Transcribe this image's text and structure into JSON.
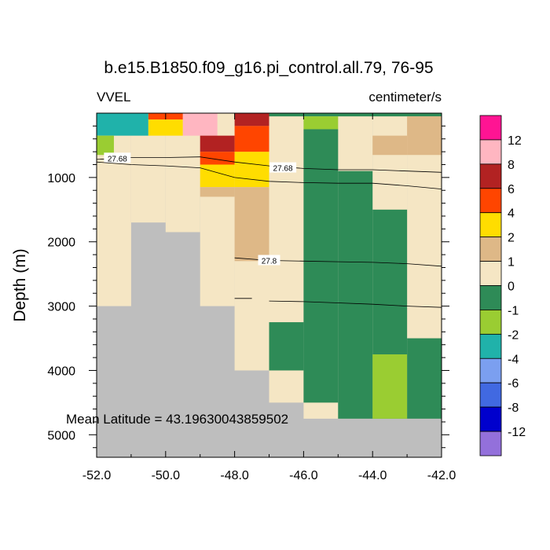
{
  "chart_data": {
    "type": "heatmap",
    "title": "b.e15.B1850.f09_g16.pi_control.all.79, 76-95",
    "left_label": "VVEL",
    "right_label": "centimeter/s",
    "ylabel": "Depth (m)",
    "xlabel": "",
    "xlim": [
      -52.0,
      -42.0
    ],
    "ylim": [
      5350,
      0
    ],
    "x_ticks": [
      -52.0,
      -50.0,
      -48.0,
      -46.0,
      -44.0,
      -42.0
    ],
    "x_tick_labels": [
      "-52.0",
      "-50.0",
      "-48.0",
      "-46.0",
      "-44.0",
      "-42.0"
    ],
    "y_ticks": [
      1000,
      2000,
      3000,
      4000,
      5000
    ],
    "y_tick_labels": [
      "1000",
      "2000",
      "3000",
      "4000",
      "5000"
    ],
    "annotation": "Mean Latitude = 43.19630043859502",
    "colorbar": {
      "labels": [
        "12",
        "8",
        "6",
        "4",
        "2",
        "1",
        "0",
        "-1",
        "-2",
        "-4",
        "-6",
        "-8",
        "-12"
      ],
      "colors": [
        "#ff1493",
        "#ffb6c1",
        "#b22222",
        "#ff4500",
        "#ffdd00",
        "#deb887",
        "#f5e6c4",
        "#2e8b57",
        "#9acd32",
        "#20b2aa",
        "#7b9ff0",
        "#4169e1",
        "#0000cd",
        "#9370db"
      ]
    },
    "colors": {
      "land": "#bebebe",
      "c0": "#f5e6c4",
      "c1": "#deb887",
      "c2": "#ffdd00",
      "c4": "#ff4500",
      "c6": "#b22222",
      "c8": "#ffb6c1",
      "cm1": "#2e8b57",
      "cm2": "#9acd32",
      "cm4": "#20b2aa"
    },
    "background_cells": [
      {
        "x": [
          -52.0,
          -42.0
        ],
        "y": [
          0,
          5350
        ],
        "c": "land"
      }
    ],
    "cells": [
      {
        "x": [
          -52.0,
          -51.0
        ],
        "y": [
          0,
          3000
        ],
        "c": "c0"
      },
      {
        "x": [
          -51.0,
          -50.0
        ],
        "y": [
          0,
          1700
        ],
        "c": "c0"
      },
      {
        "x": [
          -50.0,
          -49.0
        ],
        "y": [
          0,
          1850
        ],
        "c": "c0"
      },
      {
        "x": [
          -49.0,
          -48.0
        ],
        "y": [
          0,
          3000
        ],
        "c": "c0"
      },
      {
        "x": [
          -48.0,
          -47.0
        ],
        "y": [
          0,
          4000
        ],
        "c": "c0"
      },
      {
        "x": [
          -47.0,
          -46.0
        ],
        "y": [
          0,
          4500
        ],
        "c": "c0"
      },
      {
        "x": [
          -46.0,
          -45.0
        ],
        "y": [
          0,
          4750
        ],
        "c": "c0"
      },
      {
        "x": [
          -45.0,
          -44.0
        ],
        "y": [
          0,
          4750
        ],
        "c": "c0"
      },
      {
        "x": [
          -44.0,
          -43.0
        ],
        "y": [
          0,
          4750
        ],
        "c": "c0"
      },
      {
        "x": [
          -43.0,
          -42.0
        ],
        "y": [
          0,
          4750
        ],
        "c": "c0"
      },
      {
        "x": [
          -52.0,
          -50.5
        ],
        "y": [
          0,
          350
        ],
        "c": "cm4"
      },
      {
        "x": [
          -52.0,
          -51.5
        ],
        "y": [
          350,
          650
        ],
        "c": "cm2"
      },
      {
        "x": [
          -50.5,
          -49.5
        ],
        "y": [
          0,
          100
        ],
        "c": "c4"
      },
      {
        "x": [
          -50.5,
          -49.5
        ],
        "y": [
          100,
          350
        ],
        "c": "c2"
      },
      {
        "x": [
          -49.5,
          -48.5
        ],
        "y": [
          0,
          350
        ],
        "c": "c8"
      },
      {
        "x": [
          -49.0,
          -48.0
        ],
        "y": [
          350,
          600
        ],
        "c": "c6"
      },
      {
        "x": [
          -49.0,
          -48.0
        ],
        "y": [
          600,
          800
        ],
        "c": "c4"
      },
      {
        "x": [
          -49.0,
          -48.0
        ],
        "y": [
          800,
          1150
        ],
        "c": "c2"
      },
      {
        "x": [
          -48.0,
          -47.0
        ],
        "y": [
          800,
          1150
        ],
        "c": "c2"
      },
      {
        "x": [
          -48.0,
          -47.0
        ],
        "y": [
          600,
          800
        ],
        "c": "c2"
      },
      {
        "x": [
          -48.0,
          -47.0
        ],
        "y": [
          0,
          200
        ],
        "c": "c6"
      },
      {
        "x": [
          -48.0,
          -47.0
        ],
        "y": [
          200,
          600
        ],
        "c": "c4"
      },
      {
        "x": [
          -49.0,
          -48.0
        ],
        "y": [
          1150,
          1300
        ],
        "c": "c1"
      },
      {
        "x": [
          -48.0,
          -47.0
        ],
        "y": [
          1150,
          2300
        ],
        "c": "c1"
      },
      {
        "x": [
          -47.0,
          -42.0
        ],
        "y": [
          0,
          50
        ],
        "c": "cm1"
      },
      {
        "x": [
          -46.0,
          -45.0
        ],
        "y": [
          50,
          250
        ],
        "c": "cm2"
      },
      {
        "x": [
          -43.0,
          -42.0
        ],
        "y": [
          50,
          650
        ],
        "c": "c1"
      },
      {
        "x": [
          -44.0,
          -43.0
        ],
        "y": [
          350,
          650
        ],
        "c": "c1"
      },
      {
        "x": [
          -46.0,
          -45.0
        ],
        "y": [
          250,
          4500
        ],
        "c": "cm1"
      },
      {
        "x": [
          -45.0,
          -44.0
        ],
        "y": [
          900,
          4750
        ],
        "c": "cm1"
      },
      {
        "x": [
          -44.0,
          -43.0
        ],
        "y": [
          1500,
          4750
        ],
        "c": "cm1"
      },
      {
        "x": [
          -43.0,
          -42.0
        ],
        "y": [
          3500,
          4750
        ],
        "c": "cm1"
      },
      {
        "x": [
          -47.0,
          -46.0
        ],
        "y": [
          3250,
          4000
        ],
        "c": "cm1"
      },
      {
        "x": [
          -44.0,
          -43.0
        ],
        "y": [
          3750,
          4750
        ],
        "c": "cm2"
      }
    ],
    "contours": [
      {
        "label": "27.68",
        "label_at": [
          -51.4,
          700
        ],
        "points": [
          [
            -52.0,
            720
          ],
          [
            -51.0,
            690
          ],
          [
            -50.0,
            690
          ],
          [
            -49.0,
            680
          ],
          [
            -48.0,
            760
          ],
          [
            -47.0,
            820
          ],
          [
            -46.0,
            860
          ],
          [
            -45.0,
            880
          ],
          [
            -44.0,
            880
          ],
          [
            -43.0,
            900
          ],
          [
            -42.0,
            920
          ]
        ]
      },
      {
        "label": "27.68",
        "label_at": [
          -46.6,
          850
        ],
        "points": [
          [
            -52.0,
            760
          ],
          [
            -51.0,
            800
          ],
          [
            -50.0,
            820
          ],
          [
            -49.0,
            850
          ],
          [
            -48.0,
            1000
          ],
          [
            -47.0,
            1060
          ],
          [
            -46.0,
            1080
          ],
          [
            -45.0,
            1090
          ],
          [
            -44.0,
            1090
          ],
          [
            -43.0,
            1130
          ],
          [
            -42.0,
            1180
          ]
        ]
      },
      {
        "label": "27.8",
        "label_at": [
          -47.0,
          2290
        ],
        "points": [
          [
            -48.0,
            2250
          ],
          [
            -47.0,
            2290
          ],
          [
            -46.0,
            2300
          ],
          [
            -45.0,
            2310
          ],
          [
            -44.0,
            2320
          ],
          [
            -43.0,
            2340
          ],
          [
            -42.0,
            2380
          ]
        ]
      },
      {
        "label": "",
        "label_at": null,
        "points": [
          [
            -48.0,
            2880
          ],
          [
            -47.5,
            2880
          ]
        ]
      },
      {
        "label": "",
        "label_at": null,
        "points": [
          [
            -47.0,
            2920
          ],
          [
            -46.0,
            2930
          ],
          [
            -45.0,
            2950
          ],
          [
            -44.0,
            2970
          ],
          [
            -43.0,
            3000
          ],
          [
            -42.0,
            3020
          ]
        ]
      }
    ]
  }
}
